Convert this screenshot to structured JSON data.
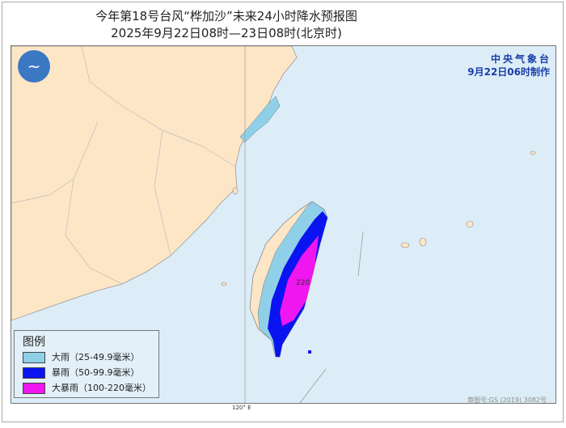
{
  "title": {
    "line1": "今年第18号台风“桦加沙”未来24小时降水预报图",
    "line2": "2025年9月22日08时—23日08时(北京时)"
  },
  "agency": {
    "name": "中央气象台",
    "issued": "9月22日06时制作"
  },
  "legend": {
    "title": "图例",
    "items": [
      {
        "label": "大雨（25-49.9毫米）",
        "color": "#8fd0e8"
      },
      {
        "label": "暴雨（50-99.9毫米）",
        "color": "#0a14f0"
      },
      {
        "label": "大暴雨（100-220毫米）",
        "color": "#f016f0"
      }
    ]
  },
  "map": {
    "max_value_label": "220",
    "longitude_label": "120° E",
    "approval_number": "审图号:GS (2019) 3082号",
    "colors": {
      "land": "#fde6c6",
      "sea": "#dcedf8"
    }
  }
}
